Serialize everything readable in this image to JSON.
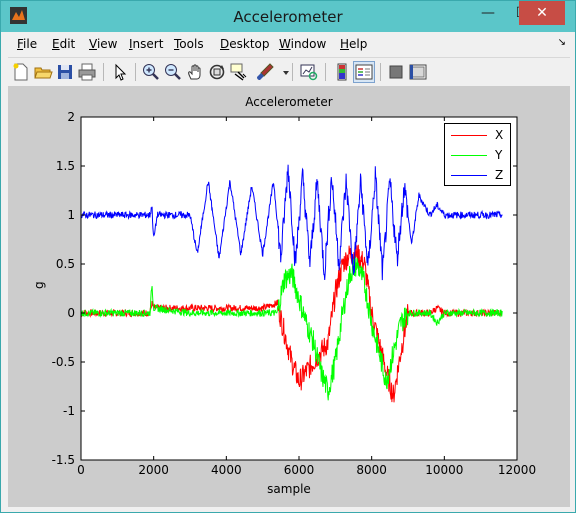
{
  "window": {
    "title": "Accelerometer",
    "controls": {
      "minimize": "—",
      "maximize": "☐",
      "close": "✕"
    }
  },
  "menubar": {
    "items": [
      "File",
      "Edit",
      "View",
      "Insert",
      "Tools",
      "Desktop",
      "Window",
      "Help"
    ],
    "arrow": "↘"
  },
  "toolbar": {
    "tools": [
      "new-figure-icon",
      "open-file-icon",
      "save-icon",
      "print-icon",
      "pointer-icon",
      "zoom-in-icon",
      "zoom-out-icon",
      "pan-hand-icon",
      "rotate-3d-icon",
      "data-cursor-icon",
      "brush-icon",
      "brush-dropdown-icon",
      "link-plot-icon",
      "colorbar-icon",
      "legend-icon",
      "hide-plot-tools-icon",
      "show-plot-tools-icon"
    ]
  },
  "chart_data": {
    "type": "line",
    "title": "Accelerometer",
    "xlabel": "sample",
    "ylabel": "g",
    "xlim": [
      0,
      12000
    ],
    "ylim": [
      -1.5,
      2
    ],
    "xticks": [
      "0",
      "2000",
      "4000",
      "6000",
      "8000",
      "10000",
      "12000"
    ],
    "yticks": [
      "-1.5",
      "-1",
      "-0.5",
      "0",
      "0.5",
      "1",
      "1.5",
      "2"
    ],
    "legend_position": "top-right",
    "grid": false,
    "series": [
      {
        "name": "X",
        "color": "#ff0000",
        "x": [
          0,
          1900,
          1950,
          2000,
          3000,
          4000,
          5000,
          5400,
          5600,
          5800,
          6000,
          6200,
          6400,
          6600,
          6800,
          7000,
          7200,
          7400,
          7600,
          7800,
          8000,
          8200,
          8400,
          8600,
          8800,
          9000,
          9600,
          9800,
          10000,
          11600
        ],
        "y": [
          0.0,
          0.0,
          0.1,
          0.05,
          0.05,
          0.05,
          0.05,
          0.1,
          -0.2,
          -0.5,
          -0.7,
          -0.6,
          -0.5,
          -0.4,
          -0.3,
          0.2,
          0.5,
          0.6,
          0.6,
          0.5,
          0.0,
          -0.3,
          -0.6,
          -0.85,
          -0.4,
          0.0,
          0.0,
          0.05,
          0.0,
          0.0
        ]
      },
      {
        "name": "Y",
        "color": "#00ff00",
        "x": [
          0,
          1900,
          1950,
          2000,
          3000,
          4000,
          5000,
          5400,
          5600,
          5800,
          6000,
          6200,
          6400,
          6600,
          6800,
          7000,
          7200,
          7400,
          7600,
          7800,
          8000,
          8200,
          8400,
          8600,
          8800,
          9000,
          9600,
          9800,
          10000,
          11600
        ],
        "y": [
          0.0,
          0.0,
          0.3,
          0.05,
          0.0,
          0.0,
          0.0,
          0.0,
          0.35,
          0.4,
          0.15,
          -0.1,
          -0.3,
          -0.6,
          -0.8,
          -0.5,
          0.0,
          0.4,
          0.5,
          0.3,
          -0.1,
          -0.4,
          -0.7,
          -0.4,
          -0.1,
          0.0,
          0.0,
          -0.1,
          0.0,
          0.0
        ]
      },
      {
        "name": "Z",
        "color": "#0000ff",
        "x": [
          0,
          1900,
          1950,
          2000,
          2100,
          3000,
          3200,
          3500,
          3800,
          4100,
          4400,
          4700,
          5000,
          5300,
          5500,
          5700,
          5900,
          6100,
          6300,
          6500,
          6700,
          6900,
          7100,
          7300,
          7500,
          7700,
          7900,
          8100,
          8300,
          8500,
          8700,
          8900,
          9100,
          9300,
          9600,
          9800,
          10000,
          11600
        ],
        "y": [
          1.0,
          1.0,
          1.1,
          0.75,
          1.0,
          1.0,
          0.6,
          1.35,
          0.55,
          1.35,
          0.6,
          1.3,
          0.6,
          1.35,
          0.55,
          1.5,
          0.5,
          1.4,
          0.5,
          1.35,
          0.4,
          1.4,
          0.5,
          1.35,
          0.4,
          1.35,
          0.45,
          1.4,
          0.4,
          1.35,
          0.55,
          1.3,
          0.7,
          1.2,
          1.0,
          1.1,
          1.0,
          1.0
        ]
      }
    ]
  }
}
